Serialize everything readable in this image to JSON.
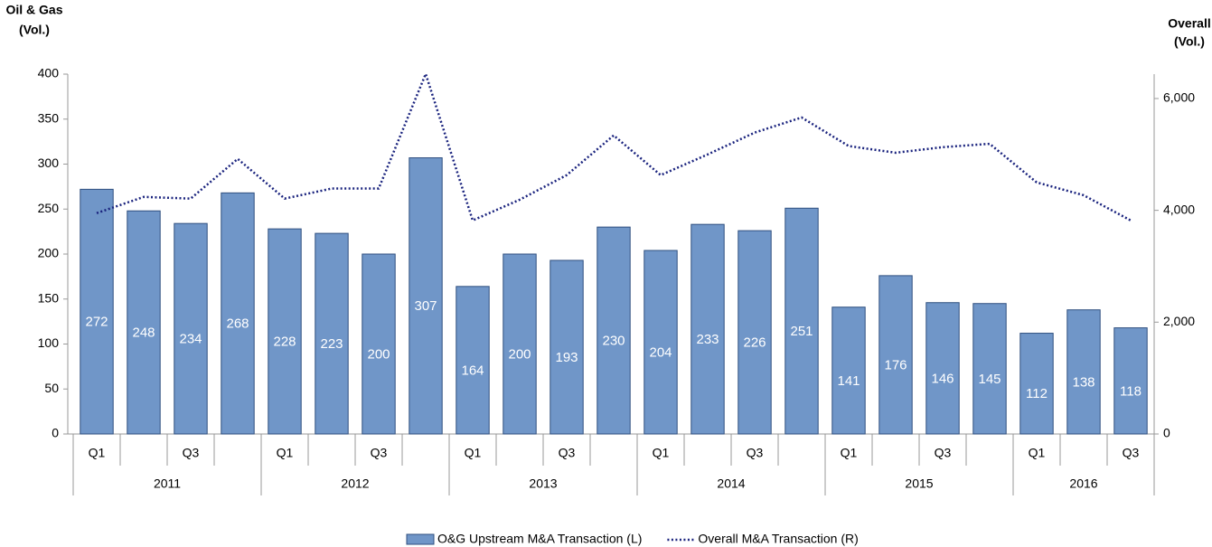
{
  "chart_data": {
    "type": "bar-line",
    "y_label": [
      "Oil & Gas",
      "(Vol.)"
    ],
    "y2_label": [
      "Overall",
      "(Vol.)"
    ],
    "categories": [
      "Q1",
      null,
      "Q3",
      null,
      "Q1",
      null,
      "Q3",
      null,
      "Q1",
      null,
      "Q3",
      null,
      "Q1",
      null,
      "Q3",
      null,
      "Q1",
      null,
      "Q3",
      null,
      "Q1",
      null,
      "Q3"
    ],
    "groups": [
      "2011",
      "2012",
      "2013",
      "2014",
      "2015",
      "2016"
    ],
    "series": [
      {
        "name": "O&G Upstream M&A Transaction (L)",
        "type": "bar",
        "color": "#7096c8",
        "values": [
          272,
          248,
          234,
          268,
          228,
          223,
          200,
          307,
          164,
          200,
          193,
          230,
          204,
          233,
          226,
          251,
          141,
          176,
          146,
          145,
          112,
          138,
          118
        ]
      },
      {
        "name": "Overall M&A Transaction (R)",
        "type": "line",
        "axis": "y2",
        "color": "#1a237e",
        "values": [
          3950,
          4240,
          4210,
          4920,
          4210,
          4390,
          4390,
          6440,
          3820,
          4190,
          4630,
          5340,
          4630,
          5000,
          5390,
          5660,
          5150,
          5030,
          5130,
          5190,
          4500,
          4270,
          3820
        ]
      }
    ],
    "ylim": [
      0,
      400
    ],
    "yticks": [
      0,
      50,
      100,
      150,
      200,
      250,
      300,
      350,
      400
    ],
    "y2lim": [
      0,
      6436
    ],
    "y2ticks": [
      0,
      {
        "value": 2000,
        "label": "2,000"
      },
      {
        "value": 4000,
        "label": "4,000"
      },
      {
        "value": 6000,
        "label": "6,000"
      }
    ]
  }
}
